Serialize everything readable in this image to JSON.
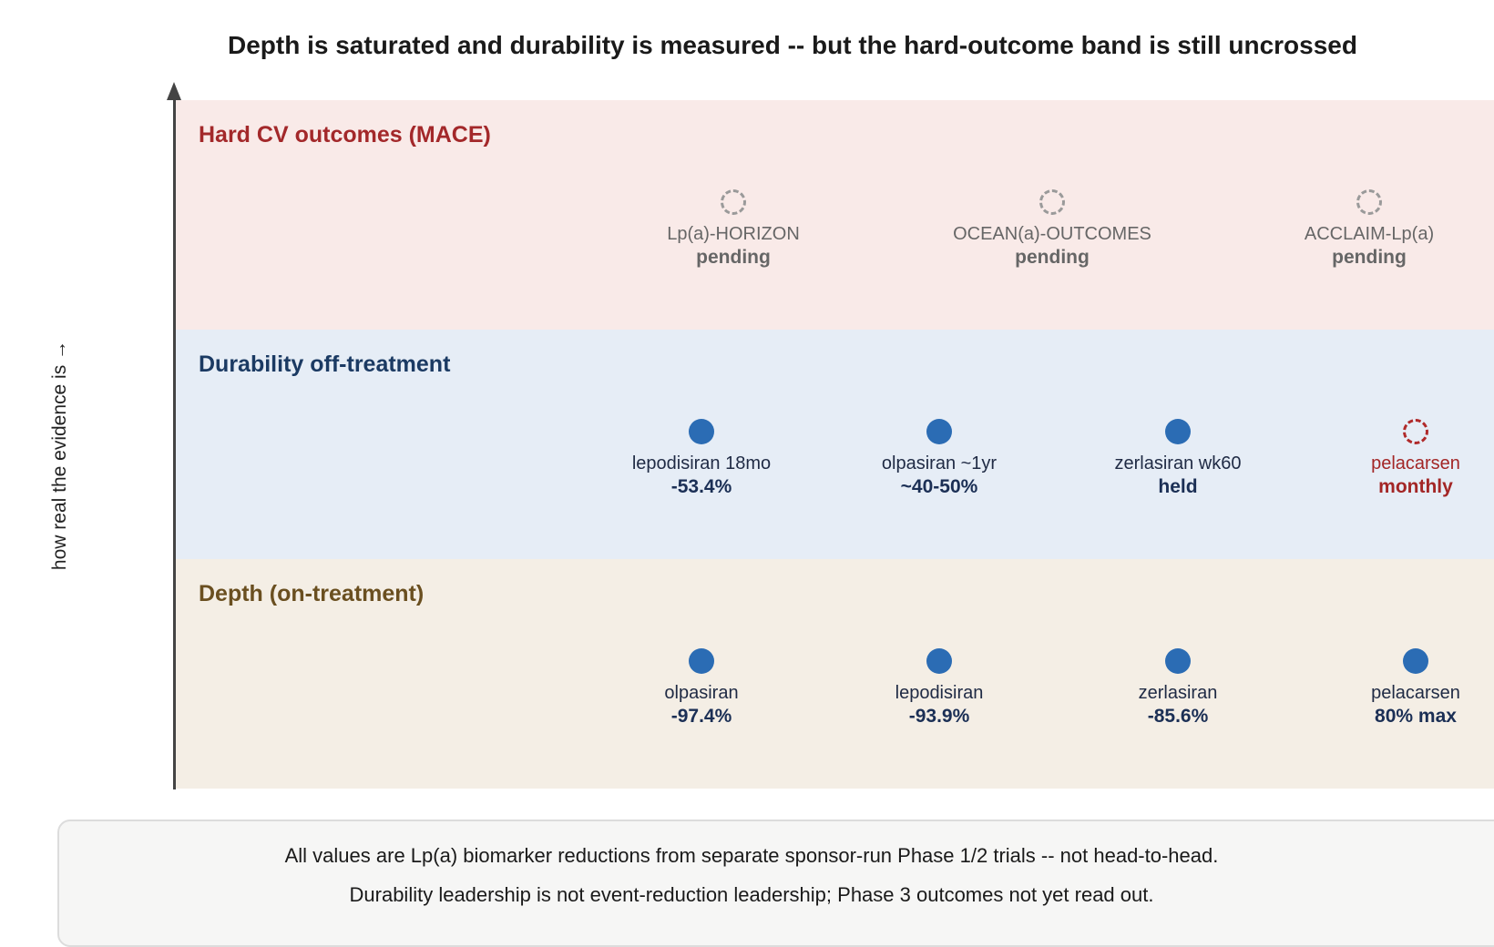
{
  "title": "Depth is saturated and durability is measured -- but the hard-outcome band is still uncrossed",
  "y_axis_label": "how real the evidence is →",
  "bands": {
    "outcomes": {
      "title": "Hard CV outcomes (MACE)",
      "items": [
        {
          "name": "Lp(a)-HORIZON",
          "value": "pending",
          "marker": "pending"
        },
        {
          "name": "OCEAN(a)-OUTCOMES",
          "value": "pending",
          "marker": "pending"
        },
        {
          "name": "ACCLAIM-Lp(a)",
          "value": "pending",
          "marker": "pending"
        }
      ]
    },
    "durability": {
      "title": "Durability off-treatment",
      "items": [
        {
          "name": "lepodisiran 18mo",
          "value": "-53.4%",
          "marker": "solid"
        },
        {
          "name": "olpasiran ~1yr",
          "value": "~40-50%",
          "marker": "solid"
        },
        {
          "name": "zerlasiran wk60",
          "value": "held",
          "marker": "solid"
        },
        {
          "name": "pelacarsen",
          "value": "monthly",
          "marker": "pending-red"
        }
      ]
    },
    "depth": {
      "title": "Depth (on-treatment)",
      "items": [
        {
          "name": "olpasiran",
          "value": "-97.4%",
          "marker": "solid"
        },
        {
          "name": "lepodisiran",
          "value": "-93.9%",
          "marker": "solid"
        },
        {
          "name": "zerlasiran",
          "value": "-85.6%",
          "marker": "solid"
        },
        {
          "name": "pelacarsen",
          "value": "80% max",
          "marker": "solid"
        }
      ]
    }
  },
  "colors": {
    "outcomes_band": "#f9eae8",
    "durability_band": "#e6edf6",
    "depth_band": "#f4eee5",
    "marker_solid": "#2b6cb4",
    "marker_pending": "#9a9a9a",
    "warning": "#a32626"
  },
  "note": {
    "line1": "All values are Lp(a) biomarker reductions from separate sponsor-run Phase 1/2 trials -- not head-to-head.",
    "line2": "Durability leadership is not event-reduction leadership; Phase 3 outcomes not yet read out."
  }
}
